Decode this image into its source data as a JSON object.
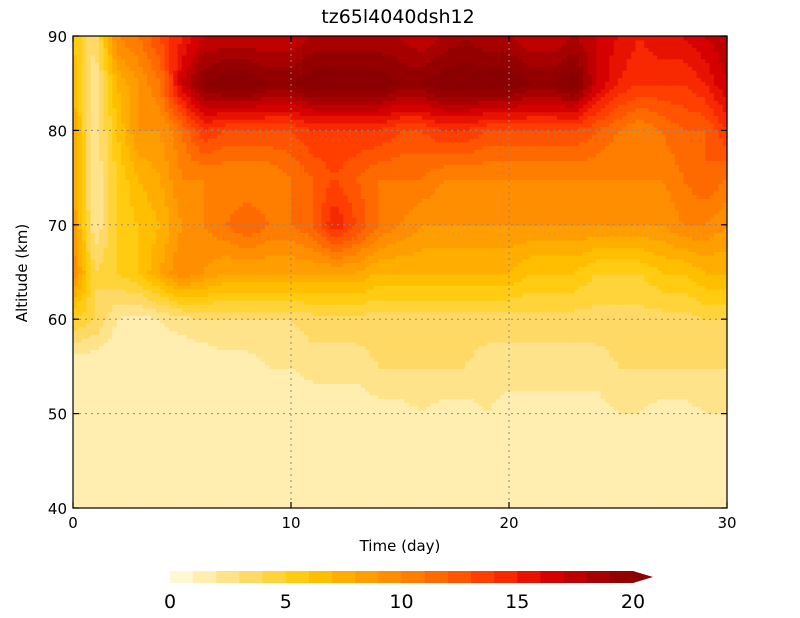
{
  "chart_data": {
    "type": "heatmap",
    "title": "tz65l4040dsh12",
    "xlabel": "Time  (day)",
    "ylabel": "Altitude  (km)",
    "xlim": [
      0,
      30
    ],
    "ylim": [
      40,
      90
    ],
    "x_ticks": [
      "0",
      "10",
      "20",
      "30"
    ],
    "y_ticks": [
      "40",
      "50",
      "60",
      "70",
      "80",
      "90"
    ],
    "grid": true,
    "colorbar": {
      "orientation": "horizontal",
      "placement": "bottom",
      "min": 0,
      "max": 20,
      "step": 1,
      "extend": "max",
      "tick_labels": [
        "0",
        "5",
        "10",
        "15",
        "20"
      ],
      "colors": [
        "#fff7d2",
        "#ffeeb0",
        "#ffe38a",
        "#ffd965",
        "#ffd33a",
        "#ffcc12",
        "#ffbe00",
        "#ffae00",
        "#ff9e00",
        "#ff8f00",
        "#ff7e00",
        "#ff6a00",
        "#ff5500",
        "#ff3f00",
        "#f82800",
        "#e81200",
        "#d60000",
        "#be0000",
        "#a70000",
        "#940000",
        "#8b0000"
      ]
    },
    "time_days": [
      0,
      1,
      2,
      3,
      4,
      5,
      6,
      7,
      8,
      9,
      10,
      11,
      12,
      13,
      14,
      15,
      16,
      17,
      18,
      19,
      20,
      21,
      22,
      23,
      24,
      25,
      26,
      27,
      28,
      29,
      30
    ],
    "altitude_km": [
      40,
      45,
      50,
      55,
      60,
      65,
      70,
      75,
      80,
      85,
      90
    ],
    "values": [
      [
        1,
        1,
        1,
        1,
        1,
        1,
        1,
        1,
        1,
        1,
        1,
        1,
        1,
        1,
        1,
        1,
        1,
        1,
        1,
        1,
        1,
        1,
        1,
        1,
        1,
        1,
        1,
        1,
        1,
        1,
        1
      ],
      [
        1,
        1,
        1,
        1,
        1,
        1,
        1,
        1,
        1,
        1,
        1,
        1,
        1,
        1,
        1,
        1,
        1,
        1,
        1,
        1,
        1,
        1,
        1,
        1,
        1,
        1,
        1,
        1,
        1,
        1,
        1
      ],
      [
        1,
        1,
        1,
        1,
        1,
        1,
        1,
        1,
        1,
        1,
        1,
        1,
        1,
        1,
        1.5,
        1.5,
        2,
        1.5,
        1.5,
        2,
        1.5,
        1.5,
        1.5,
        1.5,
        1.5,
        2,
        2,
        1.5,
        1.5,
        2,
        2
      ],
      [
        1,
        1,
        1,
        1,
        1,
        1,
        1,
        1.5,
        1.5,
        2,
        2,
        2.5,
        2.5,
        2.5,
        3,
        3,
        3,
        3,
        3,
        2.5,
        2.5,
        2.5,
        2.5,
        2.5,
        2.5,
        3,
        3,
        3,
        3,
        3,
        3
      ],
      [
        5,
        4,
        2,
        1.5,
        2,
        2.5,
        3,
        3,
        3,
        3,
        3,
        3.5,
        3.5,
        3.5,
        3.5,
        3.5,
        3.5,
        3.5,
        3.5,
        3.5,
        3.5,
        3.5,
        3.5,
        3.5,
        3.5,
        3.5,
        3.5,
        3.5,
        3.5,
        4,
        4
      ],
      [
        10,
        4,
        5,
        6,
        8,
        10,
        9,
        8,
        8,
        8,
        8,
        8,
        8,
        8,
        7,
        7,
        7,
        7,
        7,
        7,
        7,
        6,
        6,
        6,
        5,
        5,
        5,
        6,
        6,
        7,
        7
      ],
      [
        9,
        2,
        5,
        6,
        7,
        9,
        10,
        11,
        12,
        11,
        11,
        12,
        15,
        13,
        11,
        10,
        9,
        9,
        9,
        9,
        9,
        9,
        9,
        9,
        9,
        9,
        9,
        9,
        10,
        10,
        9
      ],
      [
        8,
        2,
        5,
        7,
        8,
        10,
        10,
        10,
        10,
        10,
        11,
        12,
        13,
        12,
        11,
        11,
        11,
        10,
        10,
        10,
        10,
        10,
        10,
        10,
        10,
        10,
        10,
        10,
        11,
        12,
        11
      ],
      [
        8,
        2,
        6,
        9,
        9,
        11,
        14,
        13,
        13,
        13,
        13,
        14,
        14,
        14,
        14,
        13,
        13,
        14,
        14,
        13,
        13,
        13,
        13,
        13,
        12,
        11,
        10,
        11,
        12,
        12,
        14
      ],
      [
        7,
        2,
        7,
        9,
        11,
        17,
        20,
        21,
        21,
        20,
        20,
        21,
        21,
        21,
        21,
        20,
        20,
        21,
        21,
        21,
        21,
        20,
        20,
        21,
        17,
        15,
        14,
        14,
        14,
        15,
        17
      ],
      [
        6,
        3,
        10,
        11,
        13,
        15,
        17,
        17,
        17,
        17,
        17,
        18,
        18,
        18,
        18,
        18,
        17,
        18,
        19,
        18,
        18,
        17,
        17,
        18,
        17,
        16,
        15,
        16,
        16,
        17,
        18
      ]
    ]
  }
}
